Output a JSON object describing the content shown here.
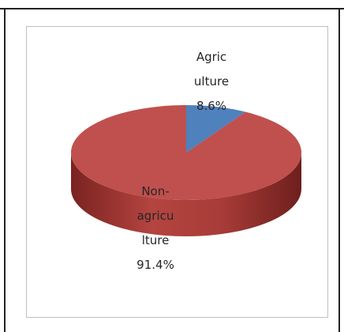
{
  "chart_data": {
    "type": "pie",
    "categories": [
      "Agriculture",
      "Non-agriculture"
    ],
    "values": [
      8.6,
      91.4
    ],
    "value_labels": [
      "8.6%",
      "91.4%"
    ],
    "colors": [
      "#4f81bd",
      "#c0504d"
    ]
  }
}
